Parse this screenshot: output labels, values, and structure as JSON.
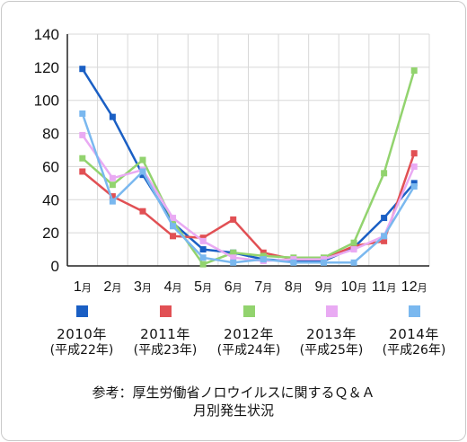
{
  "chart_data": {
    "type": "line",
    "categories": [
      "1月",
      "2月",
      "3月",
      "4月",
      "5月",
      "6月",
      "7月",
      "8月",
      "9月",
      "10月",
      "11月",
      "12月"
    ],
    "ylim": [
      0,
      140
    ],
    "yticks": [
      0,
      20,
      40,
      60,
      80,
      100,
      120,
      140
    ],
    "grid": true,
    "legend_position": "bottom",
    "series": [
      {
        "name": "2010年",
        "sub": "(平成22年)",
        "color": "#1a5fc4",
        "values": [
          119,
          90,
          55,
          26,
          10,
          8,
          4,
          3,
          3,
          11,
          29,
          50
        ]
      },
      {
        "name": "2011年",
        "sub": "(平成23年)",
        "color": "#e15054",
        "values": [
          57,
          42,
          33,
          18,
          17,
          28,
          8,
          4,
          4,
          12,
          15,
          68
        ]
      },
      {
        "name": "2012年",
        "sub": "(平成24年)",
        "color": "#92d36e",
        "values": [
          65,
          49,
          64,
          27,
          1,
          8,
          6,
          5,
          5,
          14,
          56,
          118
        ]
      },
      {
        "name": "2013年",
        "sub": "(平成25年)",
        "color": "#e9aaf3",
        "values": [
          79,
          53,
          58,
          29,
          15,
          5,
          3,
          4,
          4,
          10,
          18,
          60
        ]
      },
      {
        "name": "2014年",
        "sub": "(平成26年)",
        "color": "#7ab8ef",
        "values": [
          92,
          39,
          57,
          24,
          5,
          2,
          4,
          2,
          2,
          2,
          18,
          48
        ]
      }
    ]
  },
  "caption": {
    "line1": "参考：厚生労働省ノロウイルスに関するＱ＆Ａ",
    "line2": "月別発生状況"
  }
}
